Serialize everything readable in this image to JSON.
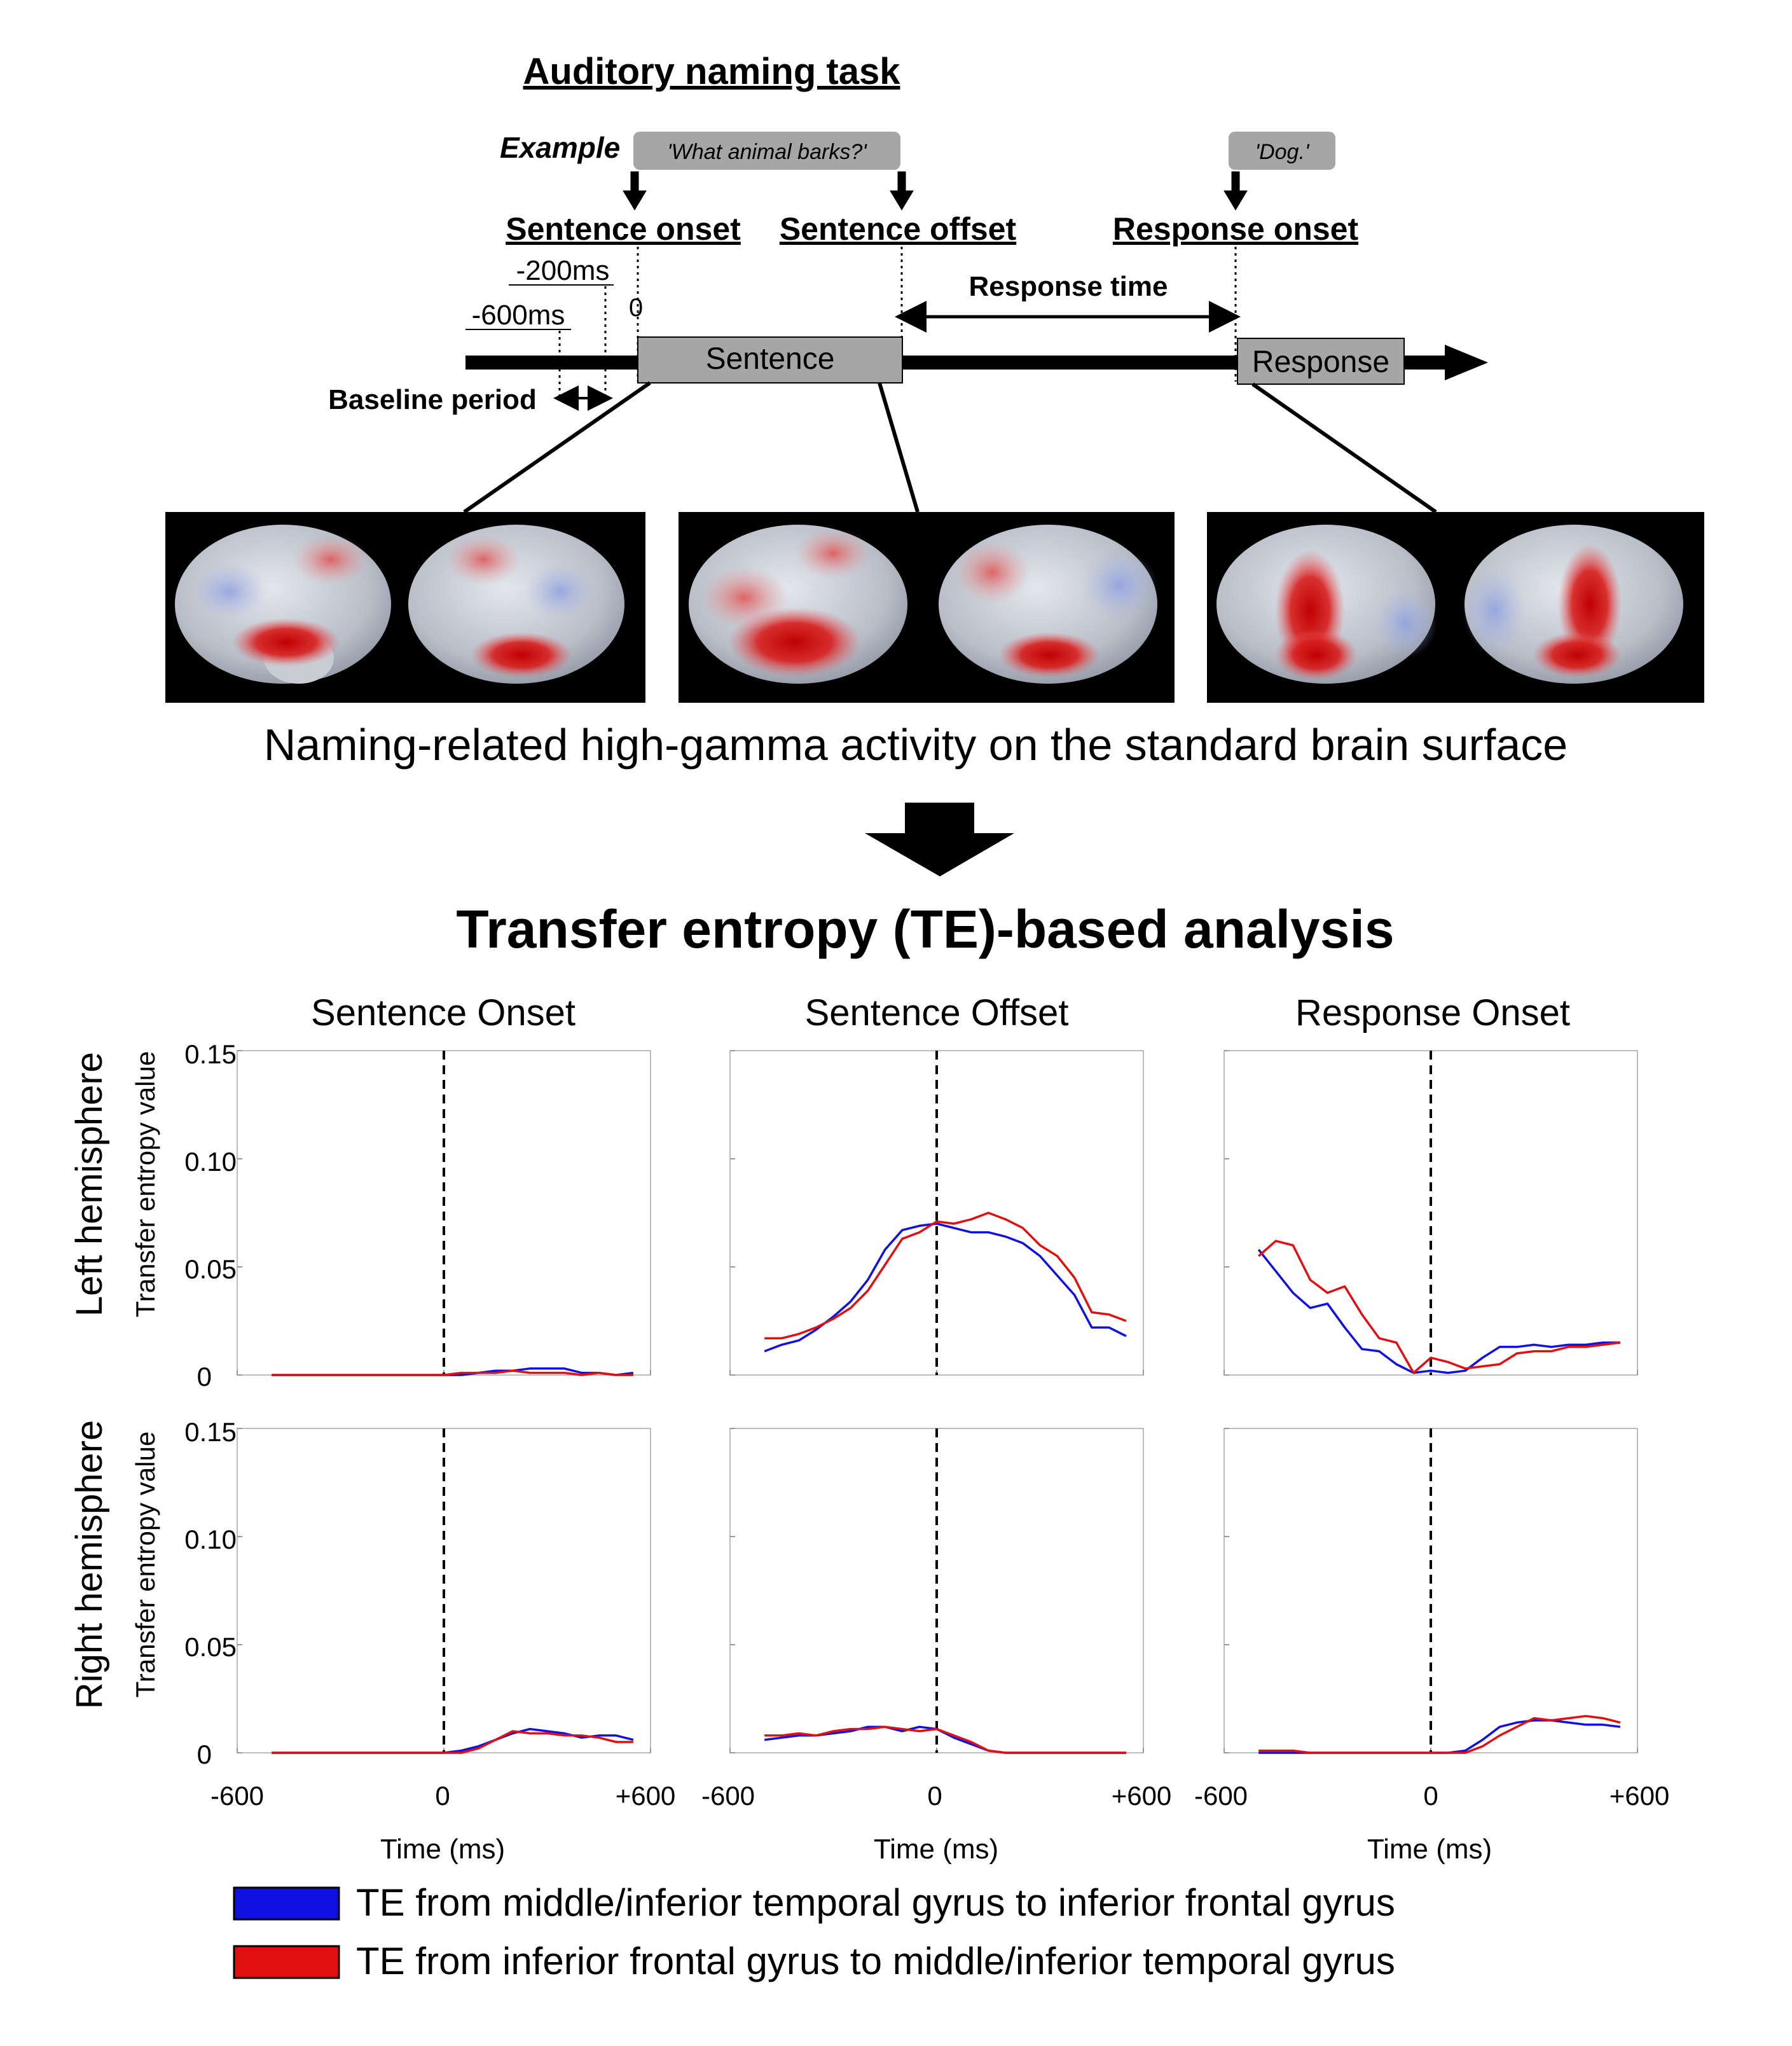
{
  "task": {
    "title": "Auditory naming task",
    "example_label": "Example",
    "question": "'What animal barks?'",
    "answer": "'Dog.'",
    "events": {
      "sentence_onset": "Sentence onset",
      "sentence_offset": "Sentence offset",
      "response_onset": "Response onset"
    },
    "time_marks": {
      "zero": "0",
      "minus200": "-200ms",
      "minus600": "-600ms"
    },
    "response_time": "Response time",
    "baseline": "Baseline period",
    "sentence_box": "Sentence",
    "response_box": "Response"
  },
  "brain_caption": "Naming-related high-gamma activity on the standard brain surface",
  "analysis_title": "Transfer entropy (TE)-based analysis",
  "columns": [
    "Sentence Onset",
    "Sentence Offset",
    "Response Onset"
  ],
  "rows": [
    "Left hemisphere",
    "Right hemisphere"
  ],
  "y_axis_label": "Transfer entropy value",
  "x_axis_label": "Time (ms)",
  "legend": [
    {
      "label": "TE from middle/inferior temporal gyrus to inferior frontal gyrus",
      "color": "#1010e0"
    },
    {
      "label": "TE from inferior frontal gyrus to middle/inferior temporal gyrus",
      "color": "#e01010"
    }
  ],
  "chart_data": {
    "type": "line",
    "xlim": [
      -600,
      600
    ],
    "ylim": [
      0,
      0.15
    ],
    "x_ticks": [
      "-600",
      "0",
      "+600"
    ],
    "y_ticks": [
      "0",
      "0.05",
      "0.10",
      "0.15"
    ],
    "x": [
      -500,
      -450,
      -400,
      -350,
      -300,
      -250,
      -200,
      -150,
      -100,
      -50,
      0,
      50,
      100,
      150,
      200,
      250,
      300,
      350,
      400,
      450,
      500,
      550
    ],
    "panels": [
      {
        "row": "Left hemisphere",
        "column": "Sentence Onset",
        "series": [
          {
            "name": "TE from middle/inferior temporal gyrus to inferior frontal gyrus",
            "values": [
              0,
              0,
              0,
              0,
              0,
              0,
              0,
              0,
              0,
              0,
              0,
              0,
              0.001,
              0.002,
              0.002,
              0.003,
              0.003,
              0.003,
              0.001,
              0.001,
              0,
              0.001
            ]
          },
          {
            "name": "TE from inferior frontal gyrus to middle/inferior temporal gyrus",
            "values": [
              0,
              0,
              0,
              0,
              0,
              0,
              0,
              0,
              0,
              0,
              0,
              0.001,
              0.001,
              0.001,
              0.002,
              0.001,
              0.001,
              0.001,
              0,
              0.001,
              0,
              0
            ]
          }
        ]
      },
      {
        "row": "Left hemisphere",
        "column": "Sentence Offset",
        "series": [
          {
            "name": "TE from middle/inferior temporal gyrus to inferior frontal gyrus",
            "values": [
              0.011,
              0.014,
              0.016,
              0.021,
              0.027,
              0.034,
              0.044,
              0.058,
              0.067,
              0.069,
              0.07,
              0.068,
              0.066,
              0.066,
              0.064,
              0.061,
              0.055,
              0.046,
              0.037,
              0.022,
              0.022,
              0.018
            ]
          },
          {
            "name": "TE from inferior frontal gyrus to middle/inferior temporal gyrus",
            "values": [
              0.017,
              0.017,
              0.019,
              0.022,
              0.026,
              0.031,
              0.039,
              0.051,
              0.063,
              0.066,
              0.071,
              0.07,
              0.072,
              0.075,
              0.072,
              0.068,
              0.06,
              0.055,
              0.045,
              0.029,
              0.028,
              0.025
            ]
          }
        ]
      },
      {
        "row": "Left hemisphere",
        "column": "Response Onset",
        "series": [
          {
            "name": "TE from middle/inferior temporal gyrus to inferior frontal gyrus",
            "values": [
              0.058,
              0.048,
              0.038,
              0.031,
              0.033,
              0.022,
              0.012,
              0.011,
              0.005,
              0.001,
              0.002,
              0.001,
              0.002,
              0.008,
              0.013,
              0.013,
              0.014,
              0.013,
              0.014,
              0.014,
              0.015,
              0.015
            ]
          },
          {
            "name": "TE from inferior frontal gyrus to middle/inferior temporal gyrus",
            "values": [
              0.055,
              0.062,
              0.06,
              0.044,
              0.038,
              0.041,
              0.028,
              0.017,
              0.015,
              0.001,
              0.008,
              0.006,
              0.003,
              0.004,
              0.005,
              0.01,
              0.011,
              0.011,
              0.013,
              0.013,
              0.014,
              0.015
            ]
          }
        ]
      },
      {
        "row": "Right hemisphere",
        "column": "Sentence Onset",
        "series": [
          {
            "name": "TE from middle/inferior temporal gyrus to inferior frontal gyrus",
            "values": [
              0,
              0,
              0,
              0,
              0,
              0,
              0,
              0,
              0,
              0,
              0,
              0.001,
              0.003,
              0.006,
              0.009,
              0.011,
              0.01,
              0.009,
              0.007,
              0.008,
              0.008,
              0.006
            ]
          },
          {
            "name": "TE from inferior frontal gyrus to middle/inferior temporal gyrus",
            "values": [
              0,
              0,
              0,
              0,
              0,
              0,
              0,
              0,
              0,
              0,
              0,
              0,
              0.002,
              0.006,
              0.01,
              0.009,
              0.009,
              0.008,
              0.008,
              0.007,
              0.005,
              0.005
            ]
          }
        ]
      },
      {
        "row": "Right hemisphere",
        "column": "Sentence Offset",
        "series": [
          {
            "name": "TE from middle/inferior temporal gyrus to inferior frontal gyrus",
            "values": [
              0.006,
              0.007,
              0.008,
              0.008,
              0.009,
              0.01,
              0.012,
              0.012,
              0.01,
              0.012,
              0.011,
              0.007,
              0.004,
              0.001,
              0,
              0,
              0,
              0,
              0,
              0,
              0,
              0
            ]
          },
          {
            "name": "TE from inferior frontal gyrus to middle/inferior temporal gyrus",
            "values": [
              0.008,
              0.008,
              0.009,
              0.008,
              0.01,
              0.011,
              0.011,
              0.012,
              0.011,
              0.01,
              0.011,
              0.008,
              0.005,
              0.001,
              0,
              0,
              0,
              0,
              0,
              0,
              0,
              0
            ]
          }
        ]
      },
      {
        "row": "Right hemisphere",
        "column": "Response Onset",
        "series": [
          {
            "name": "TE from middle/inferior temporal gyrus to inferior frontal gyrus",
            "values": [
              0,
              0,
              0,
              0,
              0,
              0,
              0,
              0,
              0,
              0,
              0,
              0,
              0.001,
              0.006,
              0.012,
              0.014,
              0.015,
              0.015,
              0.014,
              0.013,
              0.013,
              0.012
            ]
          },
          {
            "name": "TE from inferior frontal gyrus to middle/inferior temporal gyrus",
            "values": [
              0.001,
              0.001,
              0.001,
              0,
              0,
              0,
              0,
              0,
              0,
              0,
              0,
              0,
              0,
              0.003,
              0.008,
              0.012,
              0.016,
              0.015,
              0.016,
              0.017,
              0.016,
              0.014
            ]
          }
        ]
      }
    ]
  }
}
